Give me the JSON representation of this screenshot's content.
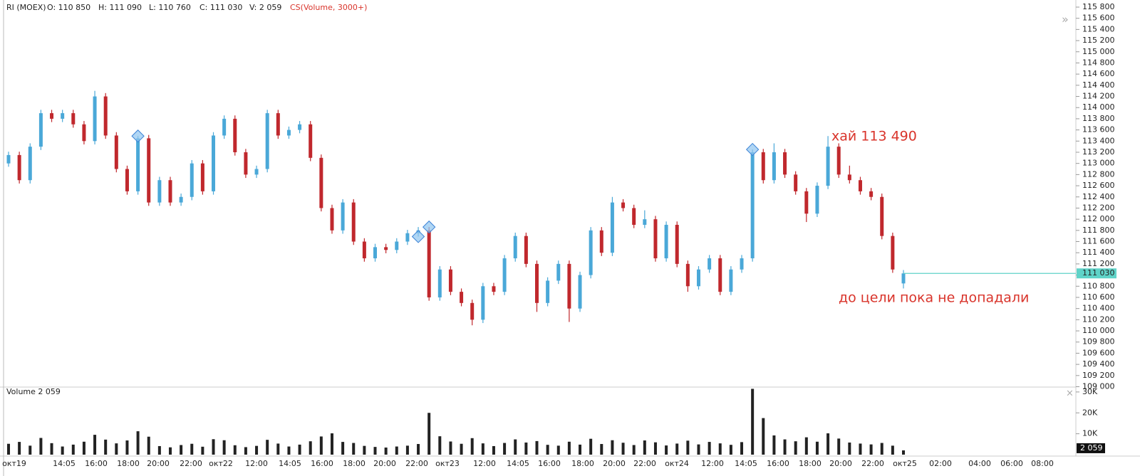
{
  "header": {
    "symbol": "RI (MOEX)",
    "open": "O: 110 850",
    "high": "H: 111 090",
    "low": "L: 110 760",
    "close": "C: 111 030",
    "volume": "V: 2 059",
    "indicator": "CS(Volume, 3000+)"
  },
  "x_axis": {
    "labels": [
      "окт19",
      "14:05",
      "16:00",
      "18:00",
      "20:00",
      "22:00",
      "окт22",
      "12:00",
      "14:05",
      "16:00",
      "18:00",
      "20:00",
      "22:00",
      "окт23",
      "12:00",
      "14:05",
      "16:00",
      "18:00",
      "20:00",
      "22:00",
      "окт24",
      "12:00",
      "14:05",
      "16:00",
      "18:00",
      "20:00",
      "22:00",
      "окт25",
      "02:00",
      "04:00",
      "06:00",
      "08:00"
    ]
  },
  "chart_data": [
    {
      "type": "candlestick",
      "up_color": "#4aa8d8",
      "down_color": "#c0282d",
      "annotations": [
        "хай 113 490",
        "до цели пока не допадали"
      ],
      "last_price": {
        "value": 111030,
        "label": "111 030"
      },
      "ylim": [
        109000,
        115800
      ],
      "yticks": [
        {
          "value": 109000,
          "label": "109 000"
        },
        {
          "value": 109200,
          "label": "109 200"
        },
        {
          "value": 109400,
          "label": "109 400"
        },
        {
          "value": 109600,
          "label": "109 600"
        },
        {
          "value": 109800,
          "label": "109 800"
        },
        {
          "value": 110000,
          "label": "110 000"
        },
        {
          "value": 110200,
          "label": "110 200"
        },
        {
          "value": 110400,
          "label": "110 400"
        },
        {
          "value": 110600,
          "label": "110 600"
        },
        {
          "value": 110800,
          "label": "110 800"
        },
        {
          "value": 111000,
          "label": "111 000"
        },
        {
          "value": 111200,
          "label": "111 200"
        },
        {
          "value": 111400,
          "label": "111 400"
        },
        {
          "value": 111600,
          "label": "111 600"
        },
        {
          "value": 111800,
          "label": "111 800"
        },
        {
          "value": 112000,
          "label": "112 000"
        },
        {
          "value": 112200,
          "label": "112 200"
        },
        {
          "value": 112400,
          "label": "112 400"
        },
        {
          "value": 112600,
          "label": "112 600"
        },
        {
          "value": 112800,
          "label": "112 800"
        },
        {
          "value": 113000,
          "label": "113 000"
        },
        {
          "value": 113200,
          "label": "113 200"
        },
        {
          "value": 113400,
          "label": "113 400"
        },
        {
          "value": 113600,
          "label": "113 600"
        },
        {
          "value": 113800,
          "label": "113 800"
        },
        {
          "value": 114000,
          "label": "114 000"
        },
        {
          "value": 114200,
          "label": "114 200"
        },
        {
          "value": 114400,
          "label": "114 400"
        },
        {
          "value": 114600,
          "label": "114 600"
        },
        {
          "value": 114800,
          "label": "114 800"
        },
        {
          "value": 115000,
          "label": "115 000"
        },
        {
          "value": 115200,
          "label": "115 200"
        },
        {
          "value": 115400,
          "label": "115 400"
        },
        {
          "value": 115600,
          "label": "115 600"
        },
        {
          "value": 115800,
          "label": "115 800"
        }
      ],
      "open": [
        113000,
        113150,
        112700,
        113300,
        113900,
        113800,
        113900,
        113700,
        113400,
        114200,
        113500,
        112900,
        112500,
        113450,
        112300,
        112700,
        112300,
        112400,
        113000,
        112500,
        113500,
        113800,
        113200,
        112800,
        112900,
        113900,
        113500,
        113600,
        113700,
        113100,
        112200,
        111800,
        112300,
        111600,
        111300,
        111500,
        111450,
        111600,
        111750,
        111800,
        110600,
        111100,
        110700,
        110500,
        110200,
        110800,
        110700,
        111300,
        111700,
        111200,
        110500,
        110900,
        111200,
        110400,
        111000,
        111800,
        111400,
        112300,
        112200,
        111900,
        112000,
        111300,
        111900,
        111200,
        110800,
        111100,
        111300,
        110700,
        111100,
        111300,
        113200,
        112700,
        113200,
        112800,
        112500,
        112100,
        112600,
        113300,
        112800,
        112700,
        112500,
        112400,
        111700,
        110850
      ],
      "high": [
        113210,
        113210,
        113360,
        113960,
        113960,
        113960,
        113960,
        113760,
        114300,
        114260,
        113560,
        112960,
        113490,
        113510,
        112760,
        112760,
        112460,
        113060,
        113060,
        113560,
        113860,
        113860,
        113260,
        112960,
        113960,
        113960,
        113660,
        113760,
        113760,
        113160,
        112260,
        112360,
        112360,
        111660,
        111560,
        111560,
        111660,
        111810,
        111860,
        111860,
        111160,
        111160,
        110760,
        110560,
        110860,
        110860,
        111360,
        111760,
        111760,
        111260,
        110960,
        111260,
        111260,
        111060,
        111860,
        111860,
        112400,
        112360,
        112260,
        112160,
        112060,
        111960,
        111960,
        111260,
        111160,
        111360,
        111360,
        111160,
        111360,
        113250,
        113260,
        113360,
        113260,
        112860,
        112560,
        112660,
        113490,
        113360,
        112960,
        112760,
        112560,
        112460,
        111760,
        111090
      ],
      "low": [
        112940,
        112640,
        112640,
        113240,
        113740,
        113740,
        113640,
        113340,
        113340,
        113440,
        112840,
        112440,
        112440,
        112240,
        112240,
        112240,
        112240,
        112340,
        112440,
        112440,
        113440,
        113140,
        112740,
        112740,
        112840,
        113440,
        113440,
        113540,
        113040,
        112140,
        111740,
        111740,
        111540,
        111240,
        111240,
        111390,
        111390,
        111540,
        111690,
        110540,
        110540,
        110640,
        110440,
        110100,
        110140,
        110640,
        110640,
        111240,
        111140,
        110340,
        110440,
        110840,
        110160,
        110340,
        110940,
        111340,
        111340,
        112140,
        111840,
        111840,
        111240,
        111240,
        111140,
        110700,
        110740,
        111040,
        110640,
        110640,
        111040,
        111240,
        112640,
        112640,
        112740,
        112440,
        111950,
        112040,
        112540,
        112740,
        112640,
        112440,
        112340,
        111640,
        111040,
        110760
      ],
      "close": [
        113150,
        112700,
        113300,
        113900,
        113800,
        113900,
        113700,
        113400,
        114200,
        113500,
        112900,
        112500,
        113450,
        112300,
        112700,
        112300,
        112400,
        113000,
        112500,
        113500,
        113800,
        113200,
        112800,
        112900,
        113900,
        113500,
        113600,
        113700,
        113100,
        112200,
        111800,
        112300,
        111600,
        111300,
        111500,
        111450,
        111600,
        111750,
        111800,
        110600,
        111100,
        110700,
        110500,
        110200,
        110800,
        110700,
        111300,
        111700,
        111200,
        110500,
        110900,
        111200,
        110400,
        111000,
        111800,
        111400,
        112300,
        112200,
        111900,
        112000,
        111300,
        111900,
        111200,
        110800,
        111100,
        111300,
        110700,
        111100,
        111300,
        113200,
        112700,
        113200,
        112800,
        112500,
        112100,
        112600,
        113300,
        112800,
        112700,
        112500,
        112400,
        111700,
        111100,
        111030
      ]
    },
    {
      "type": "bar",
      "title": "Volume 2 059",
      "color": "#222222",
      "last_label": "2 059",
      "ylim": [
        0,
        32000
      ],
      "yticks": [
        {
          "value": 10000,
          "label": "10K"
        },
        {
          "value": 20000,
          "label": "20K"
        },
        {
          "value": 30000,
          "label": "30K"
        }
      ],
      "values": [
        5200,
        6100,
        4300,
        8000,
        5500,
        3900,
        4800,
        6200,
        9500,
        7200,
        5400,
        6800,
        11200,
        8600,
        4100,
        3500,
        4600,
        5200,
        3800,
        7400,
        6900,
        4500,
        3600,
        4200,
        7100,
        5300,
        3900,
        4800,
        6400,
        8700,
        10200,
        6100,
        5600,
        4200,
        3700,
        3400,
        3900,
        4300,
        5100,
        20000,
        8800,
        6300,
        5200,
        7900,
        5400,
        4100,
        5600,
        7300,
        5800,
        6500,
        4700,
        4300,
        6200,
        4800,
        7600,
        5100,
        6900,
        5700,
        4600,
        6800,
        5900,
        4400,
        5300,
        6700,
        4900,
        6100,
        5400,
        4700,
        6000,
        31500,
        17500,
        9200,
        7300,
        6400,
        8300,
        6200,
        10200,
        7700,
        5800,
        5300,
        4900,
        5600,
        4300,
        2059
      ]
    }
  ]
}
